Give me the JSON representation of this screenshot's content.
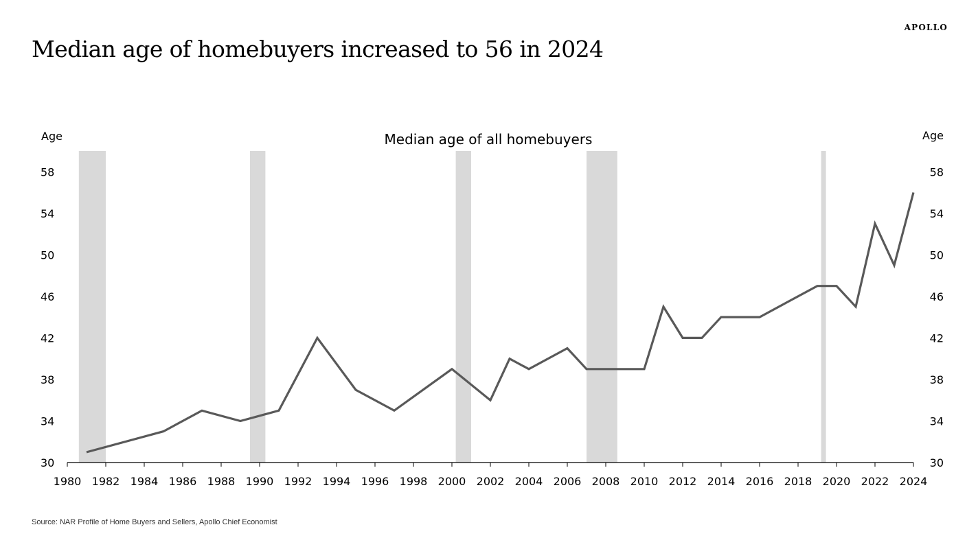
{
  "header": {
    "title": "Median age of homebuyers increased to 56 in 2024",
    "brand": "APOLLO"
  },
  "footer": {
    "source": "Source: NAR Profile of Home Buyers and Sellers, Apollo Chief Economist"
  },
  "chart_data": {
    "type": "line",
    "title": "Median age of all homebuyers",
    "ylabel_left": "Age",
    "ylabel_right": "Age",
    "xlabel": "",
    "xlim": [
      1980,
      2024
    ],
    "ylim": [
      30,
      60
    ],
    "x_ticks": [
      1980,
      1982,
      1984,
      1986,
      1988,
      1990,
      1992,
      1994,
      1996,
      1998,
      2000,
      2002,
      2004,
      2006,
      2008,
      2010,
      2012,
      2014,
      2016,
      2018,
      2020,
      2022,
      2024
    ],
    "y_ticks": [
      30,
      34,
      38,
      42,
      46,
      50,
      54,
      58
    ],
    "grid": false,
    "legend": "none",
    "colors": {
      "line": "#595959",
      "recession": "#d9d9d9",
      "axis": "#000000"
    },
    "recessions": [
      {
        "start": 1980.6,
        "end": 1982.0
      },
      {
        "start": 1989.5,
        "end": 1990.3
      },
      {
        "start": 2000.2,
        "end": 2001.0
      },
      {
        "start": 2007.0,
        "end": 2008.6
      },
      {
        "start": 2019.2,
        "end": 2019.45
      }
    ],
    "series": [
      {
        "name": "Median age of all homebuyers",
        "x": [
          1981,
          1985,
          1987,
          1989,
          1991,
          1993,
          1995,
          1997,
          2000,
          2002,
          2003,
          2004,
          2006,
          2007,
          2010,
          2011,
          2012,
          2013,
          2014,
          2016,
          2019,
          2020,
          2021,
          2022,
          2023,
          2024
        ],
        "values": [
          31,
          33,
          35,
          34,
          35,
          42,
          37,
          35,
          39,
          36,
          40,
          39,
          41,
          39,
          39,
          45,
          42,
          42,
          44,
          44,
          47,
          47,
          45,
          53,
          49,
          56
        ]
      }
    ]
  }
}
